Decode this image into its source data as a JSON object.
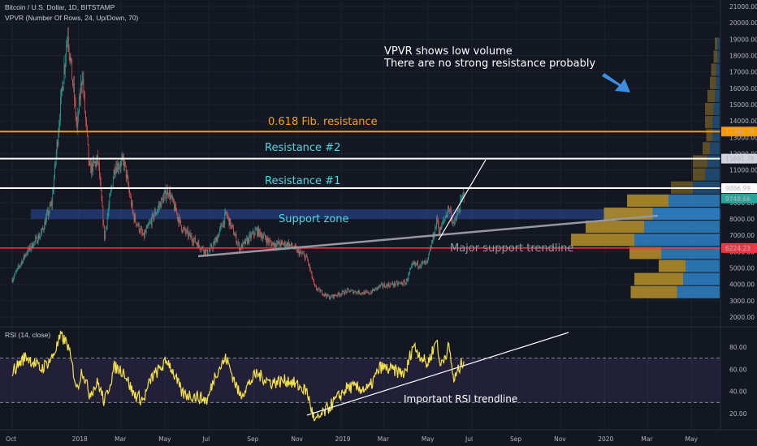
{
  "header": {
    "symbol_line": "Bitcoin / U.S. Dollar, 1D, BITSTAMP",
    "indicator_line": "VPVR (Number Of Rows, 24, Up/Down, 70)",
    "rsi_line": "RSI (14, close)"
  },
  "colors": {
    "background": "#131722",
    "candle_up": "#26a69a",
    "candle_down": "#ef5350",
    "fib_line": "#ff9800",
    "resistance_line": "#ffffff",
    "support_line": "#f23645",
    "support_zone": "#2a4ea0",
    "trendline": "#9598a1",
    "rsi_line": "#f5e14a",
    "vpvr_up": "#2f83c7",
    "vpvr_down": "#b8912b",
    "annotation_cyan": "#4fd9e3",
    "annotation_orange": "#ff9f0a",
    "arrow": "#3d8ee0"
  },
  "annotations": {
    "vpvr_note_1": "VPVR shows low volume",
    "vpvr_note_2": "There are no strong resistance probably",
    "fib": "0.618 Fib. resistance",
    "res2": "Resistance #2",
    "res1": "Resistance #1",
    "support_zone": "Support zone",
    "major_trend": "Major support trendline",
    "rsi_trend": "Important RSI trendline"
  },
  "price_labels": [
    {
      "value": "13349.38",
      "color": "#ff9800",
      "text_color": "#131722"
    },
    {
      "value": "11691.78",
      "color": "#d1d4dc",
      "text_color": "#131722"
    },
    {
      "value": "9886.99",
      "color": "#ffffff",
      "text_color": "#131722"
    },
    {
      "value": "9748.66",
      "color": "#26a69a",
      "text_color": "#ffffff"
    },
    {
      "value": "6224.23",
      "color": "#f23645",
      "text_color": "#ffffff"
    }
  ],
  "chart_data": [
    {
      "type": "candlestick",
      "title": "Bitcoin / U.S. Dollar, 1D, BITSTAMP",
      "x_ticks": [
        "Oct",
        "2018",
        "Mar",
        "May",
        "Jul",
        "Sep",
        "Nov",
        "2019",
        "Mar",
        "May",
        "Jul",
        "Sep",
        "Nov",
        "2020",
        "Mar",
        "May"
      ],
      "y_ticks": [
        "2000.00",
        "3000.00",
        "4000.00",
        "5000.00",
        "6000.00",
        "7000.00",
        "8000.00",
        "9000.00",
        "10000.00",
        "11000.00",
        "12000.00",
        "13000.00",
        "14000.00",
        "15000.00",
        "16000.00",
        "17000.00",
        "18000.00",
        "19000.00",
        "20000.00",
        "21000.00"
      ],
      "ylim": [
        2000,
        21000
      ],
      "price_path": [
        [
          "2017-10-01",
          4300
        ],
        [
          "2017-10-20",
          5900
        ],
        [
          "2017-11-10",
          7100
        ],
        [
          "2017-11-25",
          9000
        ],
        [
          "2017-12-08",
          15500
        ],
        [
          "2017-12-17",
          19500
        ],
        [
          "2017-12-30",
          13500
        ],
        [
          "2018-01-06",
          17000
        ],
        [
          "2018-01-16",
          11000
        ],
        [
          "2018-01-28",
          11600
        ],
        [
          "2018-02-06",
          6900
        ],
        [
          "2018-02-20",
          11200
        ],
        [
          "2018-03-05",
          11500
        ],
        [
          "2018-03-18",
          8200
        ],
        [
          "2018-04-01",
          6900
        ],
        [
          "2018-04-12",
          7900
        ],
        [
          "2018-05-05",
          9800
        ],
        [
          "2018-05-25",
          7400
        ],
        [
          "2018-06-15",
          6500
        ],
        [
          "2018-06-29",
          5900
        ],
        [
          "2018-07-10",
          6600
        ],
        [
          "2018-07-25",
          8300
        ],
        [
          "2018-08-13",
          6200
        ],
        [
          "2018-09-05",
          7300
        ],
        [
          "2018-09-25",
          6500
        ],
        [
          "2018-10-20",
          6450
        ],
        [
          "2018-11-14",
          5600
        ],
        [
          "2018-11-25",
          3800
        ],
        [
          "2018-12-15",
          3200
        ],
        [
          "2019-01-10",
          3600
        ],
        [
          "2019-02-08",
          3450
        ],
        [
          "2019-02-24",
          3900
        ],
        [
          "2019-03-31",
          4100
        ],
        [
          "2019-04-10",
          5200
        ],
        [
          "2019-04-30",
          5300
        ],
        [
          "2019-05-14",
          8000
        ],
        [
          "2019-05-17",
          7200
        ],
        [
          "2019-05-30",
          8700
        ],
        [
          "2019-06-06",
          7600
        ],
        [
          "2019-06-20",
          9600
        ]
      ],
      "vpvr": {
        "bin_size": 800,
        "rows": [
          {
            "price": 3100,
            "up": 0.35,
            "down": 0.38
          },
          {
            "price": 3900,
            "up": 0.3,
            "down": 0.4
          },
          {
            "price": 4700,
            "up": 0.28,
            "down": 0.22
          },
          {
            "price": 5500,
            "up": 0.48,
            "down": 0.26
          },
          {
            "price": 6300,
            "up": 0.7,
            "down": 0.52
          },
          {
            "price": 7100,
            "up": 0.62,
            "down": 0.48
          },
          {
            "price": 7900,
            "up": 0.55,
            "down": 0.4
          },
          {
            "price": 8700,
            "up": 0.42,
            "down": 0.34
          },
          {
            "price": 9500,
            "up": 0.22,
            "down": 0.18
          },
          {
            "price": 10300,
            "up": 0.12,
            "down": 0.1
          },
          {
            "price": 11100,
            "up": 0.1,
            "down": 0.12
          },
          {
            "price": 11900,
            "up": 0.08,
            "down": 0.06
          },
          {
            "price": 12700,
            "up": 0.06,
            "down": 0.05
          },
          {
            "price": 13500,
            "up": 0.06,
            "down": 0.06
          },
          {
            "price": 14300,
            "up": 0.05,
            "down": 0.07
          },
          {
            "price": 15100,
            "up": 0.04,
            "down": 0.06
          },
          {
            "price": 15900,
            "up": 0.03,
            "down": 0.05
          },
          {
            "price": 16700,
            "up": 0.03,
            "down": 0.04
          },
          {
            "price": 17500,
            "up": 0.02,
            "down": 0.03
          },
          {
            "price": 18300,
            "up": 0.02,
            "down": 0.02
          }
        ]
      },
      "levels": {
        "fib_0618": 13349.38,
        "resistance_2": 11691.78,
        "resistance_1": 9886.99,
        "support": 6224.23,
        "support_zone": [
          8000,
          8600
        ]
      }
    },
    {
      "type": "line",
      "title": "RSI (14, close)",
      "y_ticks": [
        "20.00",
        "40.00",
        "60.00",
        "80.00"
      ],
      "ylim": [
        10,
        95
      ],
      "bands": [
        30,
        70
      ],
      "rsi_path": [
        [
          "2017-10-01",
          58
        ],
        [
          "2017-10-20",
          72
        ],
        [
          "2017-11-10",
          60
        ],
        [
          "2017-11-25",
          70
        ],
        [
          "2017-12-08",
          90
        ],
        [
          "2017-12-17",
          82
        ],
        [
          "2017-12-30",
          42
        ],
        [
          "2018-01-06",
          60
        ],
        [
          "2018-01-16",
          38
        ],
        [
          "2018-01-28",
          48
        ],
        [
          "2018-02-06",
          30
        ],
        [
          "2018-02-20",
          62
        ],
        [
          "2018-03-05",
          58
        ],
        [
          "2018-03-18",
          38
        ],
        [
          "2018-04-01",
          32
        ],
        [
          "2018-04-12",
          52
        ],
        [
          "2018-05-05",
          68
        ],
        [
          "2018-05-25",
          38
        ],
        [
          "2018-06-15",
          35
        ],
        [
          "2018-06-29",
          32
        ],
        [
          "2018-07-10",
          56
        ],
        [
          "2018-07-25",
          70
        ],
        [
          "2018-08-13",
          36
        ],
        [
          "2018-09-05",
          56
        ],
        [
          "2018-09-25",
          48
        ],
        [
          "2018-10-20",
          50
        ],
        [
          "2018-11-14",
          40
        ],
        [
          "2018-11-25",
          12
        ],
        [
          "2018-12-15",
          26
        ],
        [
          "2019-01-10",
          44
        ],
        [
          "2019-02-08",
          42
        ],
        [
          "2019-02-24",
          62
        ],
        [
          "2019-03-31",
          56
        ],
        [
          "2019-04-10",
          82
        ],
        [
          "2019-04-30",
          64
        ],
        [
          "2019-05-14",
          88
        ],
        [
          "2019-05-17",
          62
        ],
        [
          "2019-05-30",
          80
        ],
        [
          "2019-06-06",
          50
        ],
        [
          "2019-06-20",
          70
        ]
      ]
    }
  ]
}
